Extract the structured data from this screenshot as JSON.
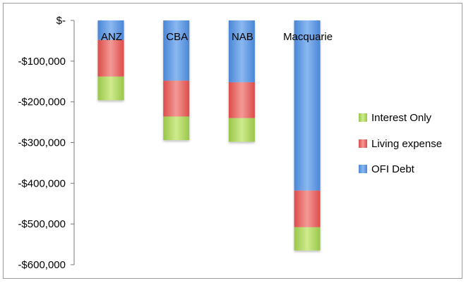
{
  "chart_data": {
    "type": "bar",
    "stacked": true,
    "orientation": "negative-values",
    "categories": [
      "ANZ",
      "CBA",
      "NAB",
      "Macquarie"
    ],
    "series": [
      {
        "name": "OFI Debt",
        "values": [
          -48000,
          -148000,
          -152000,
          -418000
        ],
        "color": "#5b97dd"
      },
      {
        "name": "Living expense",
        "values": [
          -90000,
          -88000,
          -88000,
          -90000
        ],
        "color": "#e45d5a"
      },
      {
        "name": "Interest Only",
        "values": [
          -58000,
          -58000,
          -58000,
          -57000
        ],
        "color": "#a8d25a"
      }
    ],
    "y_ticks": [
      0,
      -100000,
      -200000,
      -300000,
      -400000,
      -500000,
      -600000
    ],
    "y_tick_labels": [
      "$-",
      "-$100,000",
      "-$200,000",
      "-$300,000",
      "-$400,000",
      "-$500,000",
      "-$600,000"
    ],
    "ylim": [
      -600000,
      0
    ],
    "grid": false,
    "legend_position": "right",
    "legend_order": [
      "Interest Only",
      "Living expense",
      "OFI Debt"
    ]
  }
}
